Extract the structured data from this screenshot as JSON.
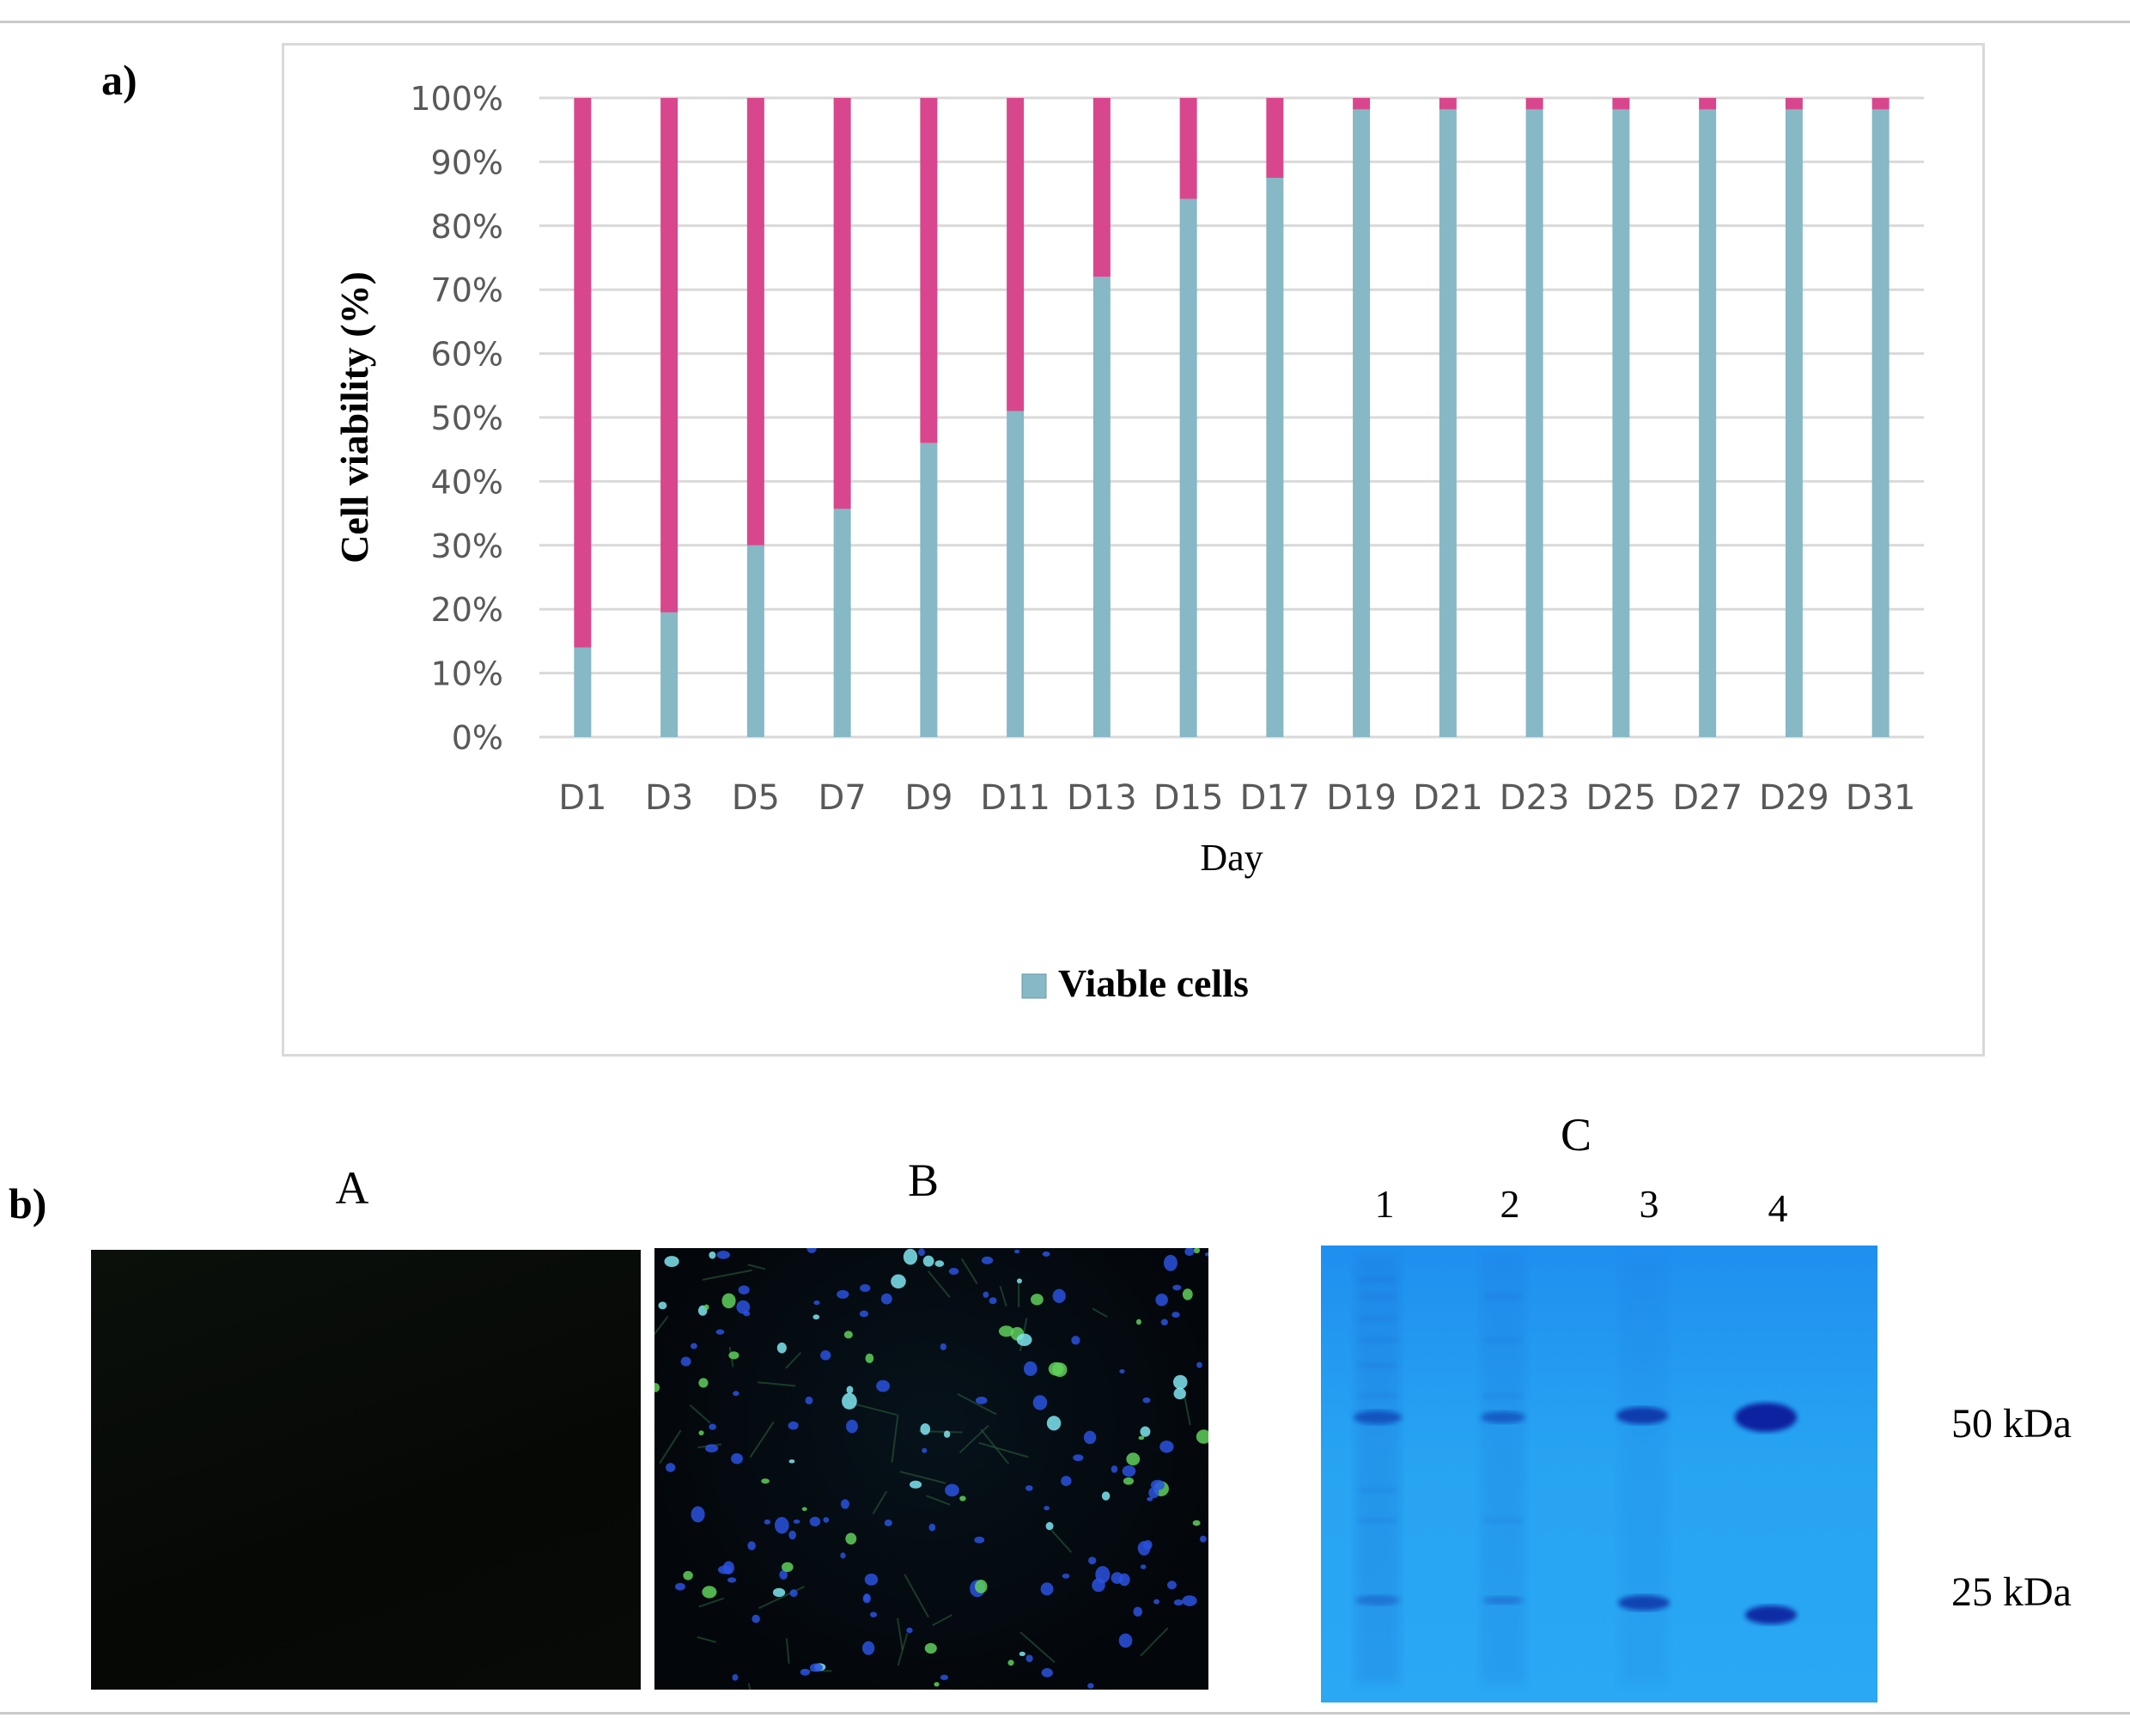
{
  "panel_a_label": "a)",
  "panel_b_label": "b)",
  "chart_data": {
    "type": "bar",
    "stacked": true,
    "categories": [
      "D1",
      "D3",
      "D5",
      "D7",
      "D9",
      "D11",
      "D13",
      "D15",
      "D17",
      "D19",
      "D21",
      "D23",
      "D25",
      "D27",
      "D29",
      "D31"
    ],
    "series": [
      {
        "name": "Viable cells",
        "color": "#86b8c5",
        "values": [
          14,
          19.5,
          30,
          35.7,
          46,
          51,
          72,
          84.2,
          87.5,
          98.2,
          98.2,
          98.2,
          98.2,
          98.2,
          98.2,
          98.2
        ]
      },
      {
        "color": "#d8478d",
        "values": [
          86,
          80.5,
          70,
          64.3,
          54,
          49,
          28,
          15.8,
          12.5,
          1.8,
          1.8,
          1.8,
          1.8,
          1.8,
          1.8,
          1.8
        ]
      }
    ],
    "yticks": [
      "0%",
      "10%",
      "20%",
      "30%",
      "40%",
      "50%",
      "60%",
      "70%",
      "80%",
      "90%",
      "100%"
    ],
    "ylim": [
      0,
      100
    ],
    "xlabel": "Day",
    "ylabel": "Cell viability (%)",
    "legend": {
      "label": "Viable cells",
      "position": "bottom"
    },
    "grid": true
  },
  "panel_b": {
    "images": [
      {
        "title": "A"
      },
      {
        "title": "B"
      },
      {
        "title": "C"
      }
    ],
    "gel": {
      "lanes": [
        "1",
        "2",
        "3",
        "4"
      ],
      "markers": [
        "50 kDa",
        "25 kDa"
      ]
    }
  }
}
